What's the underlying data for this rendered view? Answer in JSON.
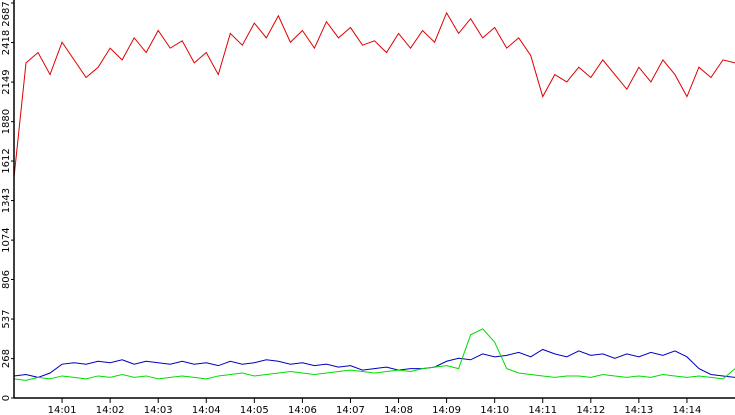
{
  "chart_data": {
    "type": "line",
    "x": [
      0,
      0.25,
      0.5,
      0.75,
      1,
      1.25,
      1.5,
      1.75,
      2,
      2.25,
      2.5,
      2.75,
      3,
      3.25,
      3.5,
      3.75,
      4,
      4.25,
      4.5,
      4.75,
      5,
      5.25,
      5.5,
      5.75,
      6,
      6.25,
      6.5,
      6.75,
      7,
      7.25,
      7.5,
      7.75,
      8,
      8.25,
      8.5,
      8.75,
      9,
      9.25,
      9.5,
      9.75,
      10,
      10.25,
      10.5,
      10.75,
      11,
      11.25,
      11.5,
      11.75,
      12,
      12.25,
      12.5,
      12.75,
      13,
      13.25,
      13.5,
      13.75,
      14,
      14.25,
      14.5,
      14.75,
      15
    ],
    "series": [
      {
        "color": "#e00000",
        "values": [
          1500,
          2280,
          2350,
          2200,
          2420,
          2300,
          2180,
          2250,
          2380,
          2300,
          2450,
          2350,
          2500,
          2380,
          2430,
          2280,
          2350,
          2200,
          2480,
          2400,
          2550,
          2450,
          2600,
          2420,
          2500,
          2380,
          2560,
          2450,
          2520,
          2400,
          2430,
          2350,
          2480,
          2380,
          2500,
          2420,
          2620,
          2480,
          2580,
          2450,
          2520,
          2380,
          2450,
          2330,
          2050,
          2200,
          2150,
          2250,
          2180,
          2300,
          2200,
          2100,
          2250,
          2150,
          2300,
          2200,
          2050,
          2250,
          2180,
          2300,
          2280
        ]
      },
      {
        "color": "#0000c0",
        "values": [
          150,
          160,
          140,
          170,
          230,
          240,
          230,
          250,
          240,
          260,
          230,
          250,
          240,
          230,
          250,
          230,
          240,
          220,
          250,
          230,
          240,
          260,
          250,
          230,
          240,
          220,
          230,
          210,
          220,
          190,
          200,
          210,
          190,
          200,
          200,
          210,
          250,
          270,
          260,
          300,
          280,
          290,
          310,
          280,
          330,
          300,
          280,
          320,
          290,
          300,
          270,
          300,
          280,
          310,
          290,
          320,
          280,
          200,
          160,
          150,
          140
        ]
      },
      {
        "color": "#00dd00",
        "values": [
          130,
          120,
          140,
          130,
          150,
          140,
          130,
          150,
          140,
          160,
          140,
          150,
          130,
          140,
          150,
          140,
          130,
          150,
          160,
          170,
          150,
          160,
          170,
          180,
          170,
          160,
          170,
          180,
          190,
          180,
          170,
          180,
          190,
          180,
          200,
          210,
          220,
          200,
          430,
          470,
          380,
          200,
          170,
          160,
          150,
          140,
          150,
          150,
          140,
          160,
          150,
          140,
          150,
          140,
          160,
          150,
          140,
          150,
          140,
          130,
          200
        ]
      }
    ],
    "xlim": [
      0,
      15
    ],
    "xticks": [
      {
        "value": 1,
        "label": "14:01"
      },
      {
        "value": 2,
        "label": "14:02"
      },
      {
        "value": 3,
        "label": "14:03"
      },
      {
        "value": 4,
        "label": "14:04"
      },
      {
        "value": 5,
        "label": "14:05"
      },
      {
        "value": 6,
        "label": "14:06"
      },
      {
        "value": 7,
        "label": "14:07"
      },
      {
        "value": 8,
        "label": "14:08"
      },
      {
        "value": 9,
        "label": "14:09"
      },
      {
        "value": 10,
        "label": "14:10"
      },
      {
        "value": 11,
        "label": "14:11"
      },
      {
        "value": 12,
        "label": "14:12"
      },
      {
        "value": 13,
        "label": "14:13"
      },
      {
        "value": 14,
        "label": "14:14"
      }
    ],
    "ylim": [
      0,
      2687
    ],
    "yticks": [
      0,
      268,
      537,
      806,
      1074,
      1343,
      1612,
      1880,
      2149,
      2418,
      2687
    ]
  }
}
